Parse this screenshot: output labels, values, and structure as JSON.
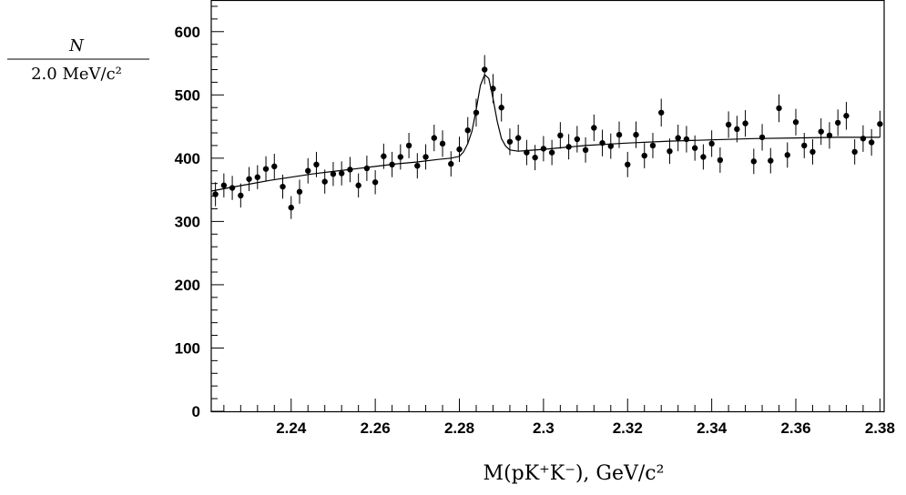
{
  "chart_data": {
    "type": "scatter",
    "title": "",
    "xlabel": "M(pK⁺K⁻),  GeV/c²",
    "ylabel_numerator": "N",
    "ylabel_denominator": "2.0  MeV/c²",
    "xlim": [
      2.221,
      2.381
    ],
    "ylim": [
      0,
      650
    ],
    "x_ticks": [
      2.24,
      2.26,
      2.28,
      2.3,
      2.32,
      2.34,
      2.36,
      2.38
    ],
    "x_tick_labels": [
      "2.24",
      "2.26",
      "2.28",
      "2.3",
      "2.32",
      "2.34",
      "2.36",
      "2.38"
    ],
    "y_ticks": [
      0,
      100,
      200,
      300,
      400,
      500,
      600
    ],
    "y_tick_labels": [
      "0",
      "100",
      "200",
      "300",
      "400",
      "500",
      "600"
    ],
    "grid": false,
    "series": [
      {
        "kind": "data_points_with_errors",
        "x": [
          2.222,
          2.224,
          2.226,
          2.228,
          2.23,
          2.232,
          2.234,
          2.236,
          2.238,
          2.24,
          2.242,
          2.244,
          2.246,
          2.248,
          2.25,
          2.252,
          2.254,
          2.256,
          2.258,
          2.26,
          2.262,
          2.264,
          2.266,
          2.268,
          2.27,
          2.272,
          2.274,
          2.276,
          2.278,
          2.28,
          2.282,
          2.284,
          2.286,
          2.288,
          2.29,
          2.292,
          2.294,
          2.296,
          2.298,
          2.3,
          2.302,
          2.304,
          2.306,
          2.308,
          2.31,
          2.312,
          2.314,
          2.316,
          2.318,
          2.32,
          2.322,
          2.324,
          2.326,
          2.328,
          2.33,
          2.332,
          2.334,
          2.336,
          2.338,
          2.34,
          2.342,
          2.344,
          2.346,
          2.348,
          2.35,
          2.352,
          2.354,
          2.356,
          2.358,
          2.36,
          2.362,
          2.364,
          2.366,
          2.368,
          2.37,
          2.372,
          2.374,
          2.376,
          2.378,
          2.38
        ],
        "y": [
          343,
          357,
          353,
          341,
          367,
          370,
          383,
          387,
          355,
          322,
          347,
          380,
          390,
          363,
          375,
          376,
          382,
          357,
          384,
          362,
          403,
          390,
          402,
          420,
          388,
          402,
          432,
          423,
          391,
          414,
          444,
          472,
          540,
          510,
          480,
          426,
          432,
          409,
          401,
          415,
          409,
          436,
          418,
          430,
          413,
          448,
          424,
          419,
          437,
          390,
          437,
          404,
          420,
          472,
          411,
          432,
          430,
          416,
          402,
          423,
          397,
          453,
          446,
          455,
          395,
          433,
          396,
          479,
          405,
          457,
          420,
          410,
          442,
          436,
          456,
          467,
          410,
          431,
          425,
          454
        ],
        "errors": [
          19,
          19,
          19,
          19,
          19,
          19,
          20,
          20,
          19,
          18,
          19,
          20,
          20,
          19,
          19,
          19,
          20,
          19,
          20,
          19,
          20,
          20,
          20,
          20,
          20,
          20,
          21,
          21,
          20,
          20,
          21,
          22,
          23,
          23,
          22,
          21,
          21,
          20,
          20,
          20,
          20,
          21,
          20,
          21,
          20,
          21,
          21,
          20,
          21,
          20,
          21,
          20,
          20,
          22,
          20,
          21,
          21,
          20,
          20,
          21,
          20,
          21,
          21,
          21,
          20,
          21,
          20,
          22,
          20,
          21,
          20,
          20,
          21,
          21,
          21,
          22,
          20,
          21,
          21,
          21
        ]
      },
      {
        "kind": "fit_curve",
        "x": [
          2.221,
          2.225,
          2.23,
          2.235,
          2.24,
          2.245,
          2.25,
          2.255,
          2.26,
          2.265,
          2.27,
          2.275,
          2.278,
          2.28,
          2.281,
          2.282,
          2.283,
          2.284,
          2.285,
          2.286,
          2.287,
          2.288,
          2.289,
          2.29,
          2.291,
          2.292,
          2.294,
          2.296,
          2.3,
          2.305,
          2.31,
          2.32,
          2.33,
          2.34,
          2.35,
          2.36,
          2.37,
          2.38
        ],
        "y": [
          348,
          353,
          359,
          365,
          370,
          375,
          379,
          383,
          387,
          391,
          394,
          398,
          400,
          403,
          410,
          423,
          443,
          477,
          515,
          532,
          526,
          494,
          458,
          431,
          419,
          413,
          411,
          412,
          414,
          417,
          420,
          424,
          427,
          429,
          431,
          432,
          433,
          433
        ]
      }
    ]
  }
}
